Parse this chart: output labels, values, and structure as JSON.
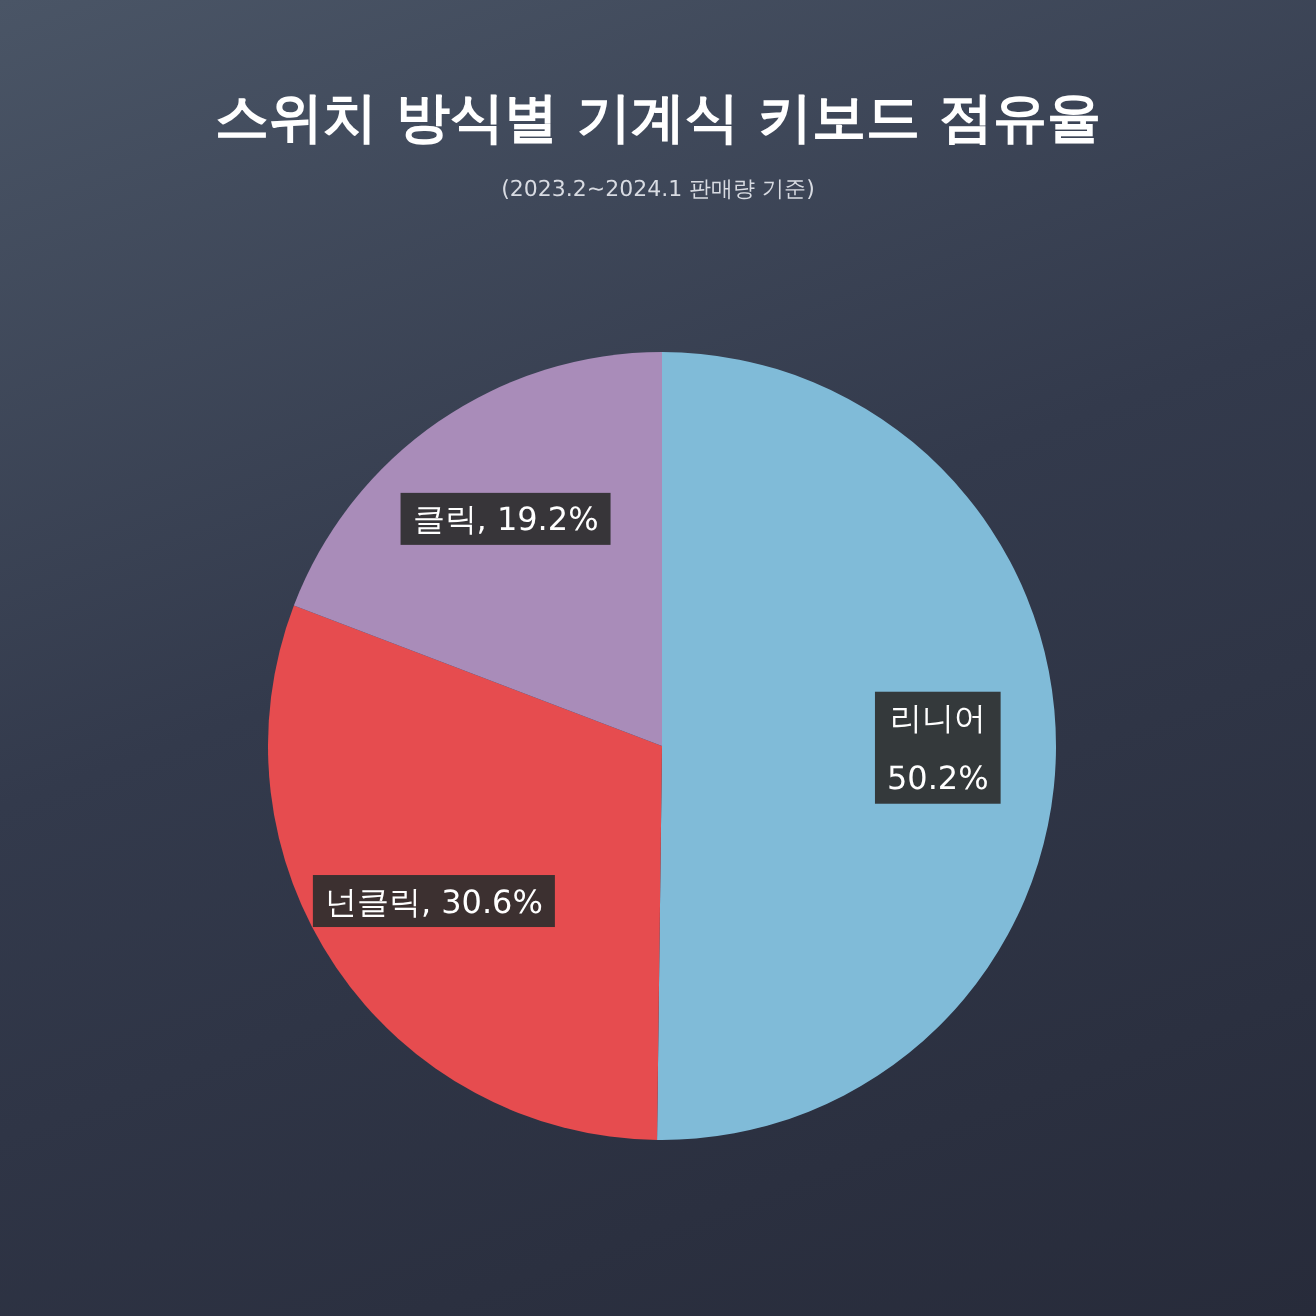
{
  "chart_data": {
    "type": "pie",
    "title": "스위치 방식별 기계식 키보드 점유율",
    "subtitle": "(2023.2~2024.1 판매량 기준)",
    "categories": [
      "리니어",
      "넌클릭",
      "클릭"
    ],
    "values": [
      50.2,
      30.6,
      19.2
    ],
    "colors": [
      "#80bbd8",
      "#e64c4f",
      "#a98cb9"
    ],
    "value_labels": [
      "50.2%",
      "30.6%",
      "19.2%"
    ],
    "legend": false
  }
}
